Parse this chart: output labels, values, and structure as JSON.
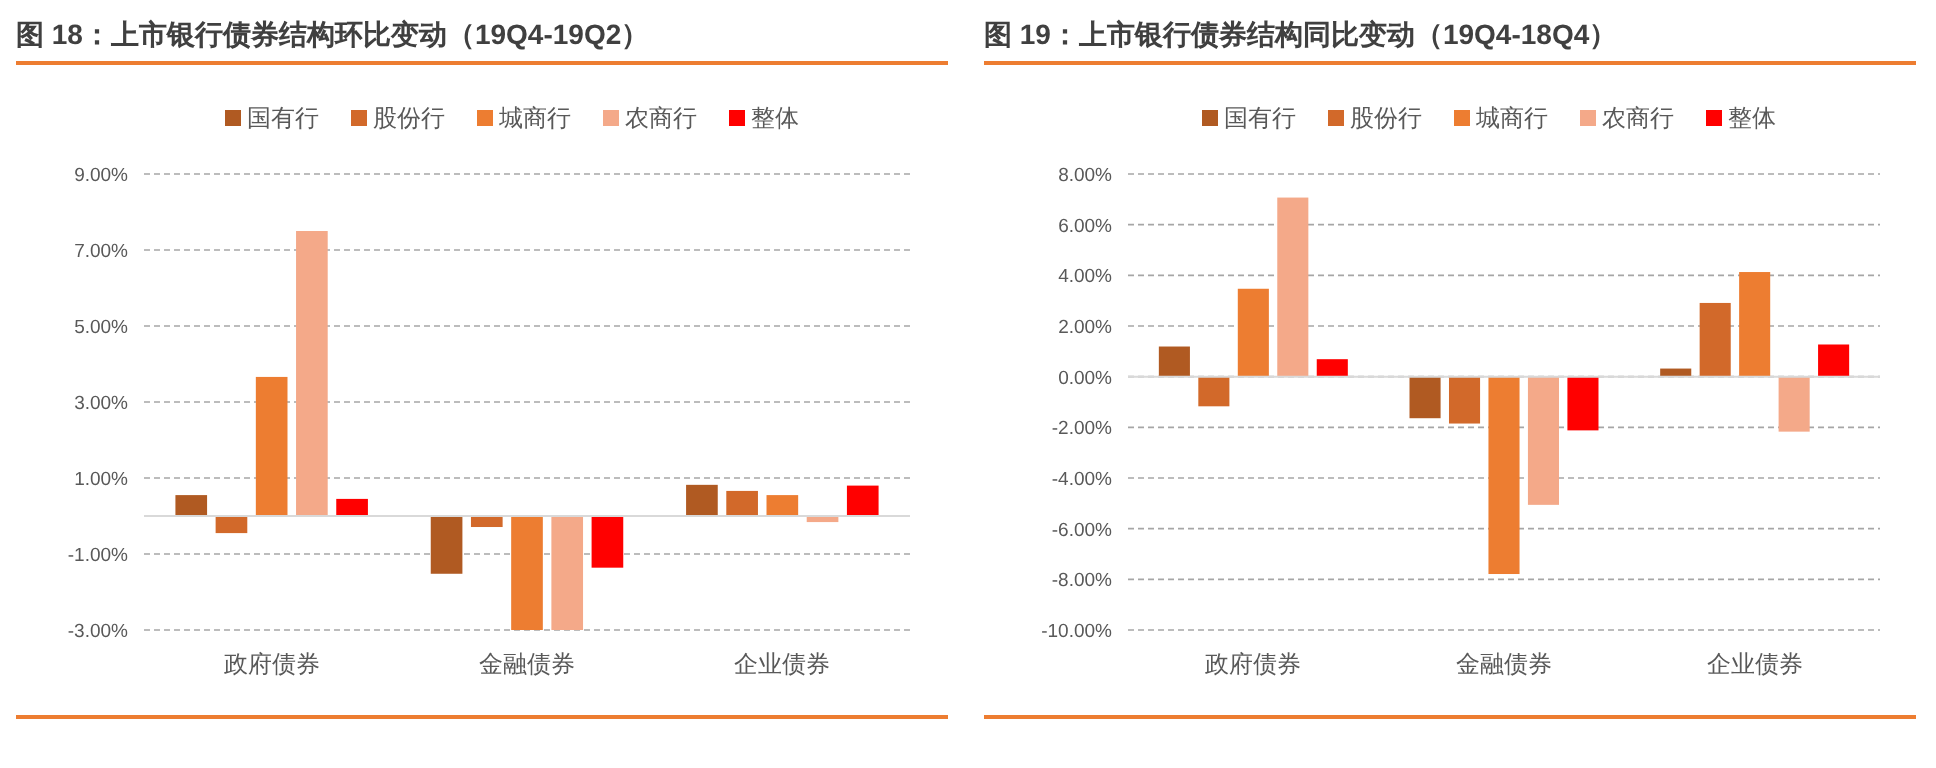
{
  "chart_data": [
    {
      "type": "bar",
      "title": "图 18：上市银行债券结构环比变动（19Q4-19Q2）",
      "categories": [
        "政府债券",
        "金融债券",
        "企业债券"
      ],
      "series": [
        {
          "name": "国有行",
          "color": "#b05a22",
          "values": [
            0.55,
            -1.52,
            0.82
          ]
        },
        {
          "name": "股份行",
          "color": "#d2692a",
          "values": [
            -0.45,
            -0.29,
            0.66
          ]
        },
        {
          "name": "城商行",
          "color": "#ed7d31",
          "values": [
            3.66,
            -3.0,
            0.55
          ]
        },
        {
          "name": "农商行",
          "color": "#f4a989",
          "values": [
            7.5,
            -3.0,
            -0.16
          ]
        },
        {
          "name": "整体",
          "color": "#ff0000",
          "values": [
            0.45,
            -1.36,
            0.8
          ]
        }
      ],
      "ylim": [
        -3,
        9
      ],
      "yticks": [
        {
          "value": -3,
          "label": "-3.00%"
        },
        {
          "value": -1,
          "label": "-1.00%"
        },
        {
          "value": 1,
          "label": "1.00%"
        },
        {
          "value": 3,
          "label": "3.00%"
        },
        {
          "value": 5,
          "label": "5.00%"
        },
        {
          "value": 7,
          "label": "7.00%"
        },
        {
          "value": 9,
          "label": "9.00%"
        }
      ],
      "grid": "y",
      "legend": "top"
    },
    {
      "type": "bar",
      "title": "图 19：上市银行债券结构同比变动（19Q4-18Q4）",
      "categories": [
        "政府债券",
        "金融债券",
        "企业债券"
      ],
      "series": [
        {
          "name": "国有行",
          "color": "#b05a22",
          "values": [
            1.19,
            -1.64,
            0.32
          ]
        },
        {
          "name": "股份行",
          "color": "#d2692a",
          "values": [
            -1.17,
            -1.85,
            2.91
          ]
        },
        {
          "name": "城商行",
          "color": "#ed7d31",
          "values": [
            3.47,
            -7.79,
            4.13
          ]
        },
        {
          "name": "农商行",
          "color": "#f4a989",
          "values": [
            7.07,
            -5.06,
            -2.17
          ]
        },
        {
          "name": "整体",
          "color": "#ff0000",
          "values": [
            0.69,
            -2.12,
            1.27
          ]
        }
      ],
      "ylim": [
        -10,
        8
      ],
      "yticks": [
        {
          "value": -10,
          "label": "-10.00%"
        },
        {
          "value": -8,
          "label": "-8.00%"
        },
        {
          "value": -6,
          "label": "-6.00%"
        },
        {
          "value": -4,
          "label": "-4.00%"
        },
        {
          "value": -2,
          "label": "-2.00%"
        },
        {
          "value": 0,
          "label": "0.00%"
        },
        {
          "value": 2,
          "label": "2.00%"
        },
        {
          "value": 4,
          "label": "4.00%"
        },
        {
          "value": 6,
          "label": "6.00%"
        },
        {
          "value": 8,
          "label": "8.00%"
        }
      ],
      "grid": "y",
      "legend": "top"
    }
  ]
}
